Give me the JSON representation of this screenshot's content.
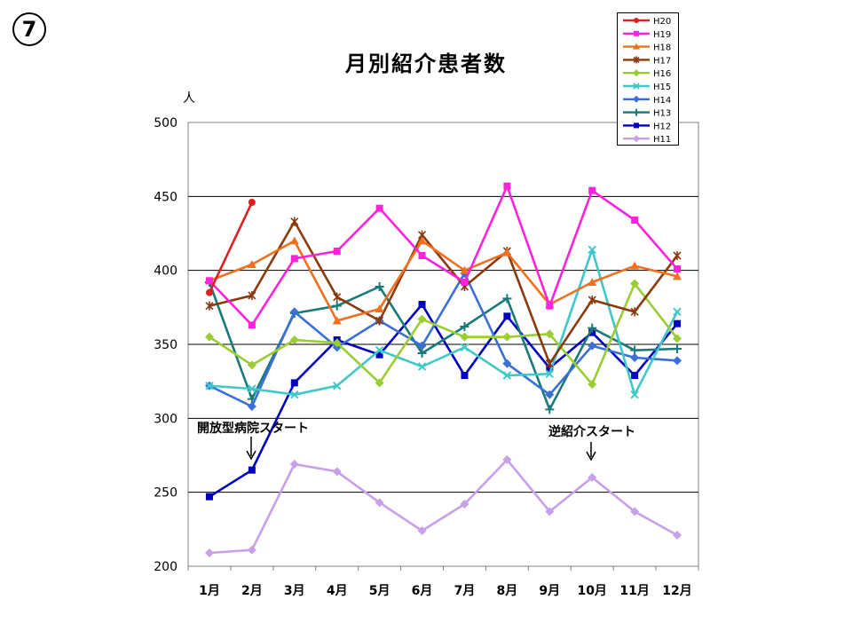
{
  "page_number": "7",
  "y_unit": "人",
  "annotations": {
    "left": "開放型病院スタート",
    "right": "逆紹介スタート"
  },
  "chart_data": {
    "type": "line",
    "title": "月別紹介患者数",
    "xlabel": "",
    "ylabel": "人",
    "categories": [
      "1月",
      "2月",
      "3月",
      "4月",
      "5月",
      "6月",
      "7月",
      "8月",
      "9月",
      "10月",
      "11月",
      "12月"
    ],
    "ylim": [
      200,
      500
    ],
    "yticks": [
      200,
      250,
      300,
      350,
      400,
      450,
      500
    ],
    "grid": true,
    "legend": "top-right",
    "series": [
      {
        "name": "H20",
        "color": "#e02020",
        "marker": "circle",
        "values": [
          385,
          446,
          null,
          null,
          null,
          null,
          null,
          null,
          null,
          null,
          null,
          null
        ]
      },
      {
        "name": "H19",
        "color": "#ff22dd",
        "marker": "square",
        "values": [
          393,
          363,
          408,
          413,
          442,
          410,
          392,
          457,
          376,
          454,
          434,
          401
        ]
      },
      {
        "name": "H18",
        "color": "#f07020",
        "marker": "triangle",
        "values": [
          393,
          404,
          420,
          366,
          374,
          420,
          400,
          412,
          377,
          392,
          403,
          396
        ]
      },
      {
        "name": "H17",
        "color": "#8b3a0e",
        "marker": "star",
        "values": [
          376,
          383,
          433,
          382,
          366,
          424,
          389,
          413,
          337,
          380,
          372,
          410
        ]
      },
      {
        "name": "H16",
        "color": "#9acd32",
        "marker": "diamond",
        "values": [
          355,
          336,
          353,
          351,
          324,
          367,
          355,
          355,
          357,
          323,
          391,
          354
        ]
      },
      {
        "name": "H15",
        "color": "#40c8c8",
        "marker": "x",
        "values": [
          322,
          320,
          316,
          322,
          346,
          335,
          348,
          329,
          330,
          414,
          316,
          372
        ]
      },
      {
        "name": "H14",
        "color": "#3a6fd8",
        "marker": "diamond",
        "values": [
          322,
          308,
          372,
          348,
          366,
          349,
          398,
          337,
          316,
          349,
          341,
          339
        ]
      },
      {
        "name": "H13",
        "color": "#1a7a7a",
        "marker": "plus",
        "values": [
          392,
          313,
          371,
          376,
          389,
          344,
          362,
          381,
          306,
          361,
          346,
          347
        ]
      },
      {
        "name": "H12",
        "color": "#0000c0",
        "marker": "square",
        "values": [
          247,
          265,
          324,
          353,
          343,
          377,
          329,
          369,
          334,
          358,
          329,
          364
        ]
      },
      {
        "name": "H11",
        "color": "#c8a0e8",
        "marker": "diamond",
        "values": [
          209,
          211,
          269,
          264,
          243,
          224,
          242,
          272,
          237,
          260,
          237,
          221
        ]
      }
    ]
  }
}
